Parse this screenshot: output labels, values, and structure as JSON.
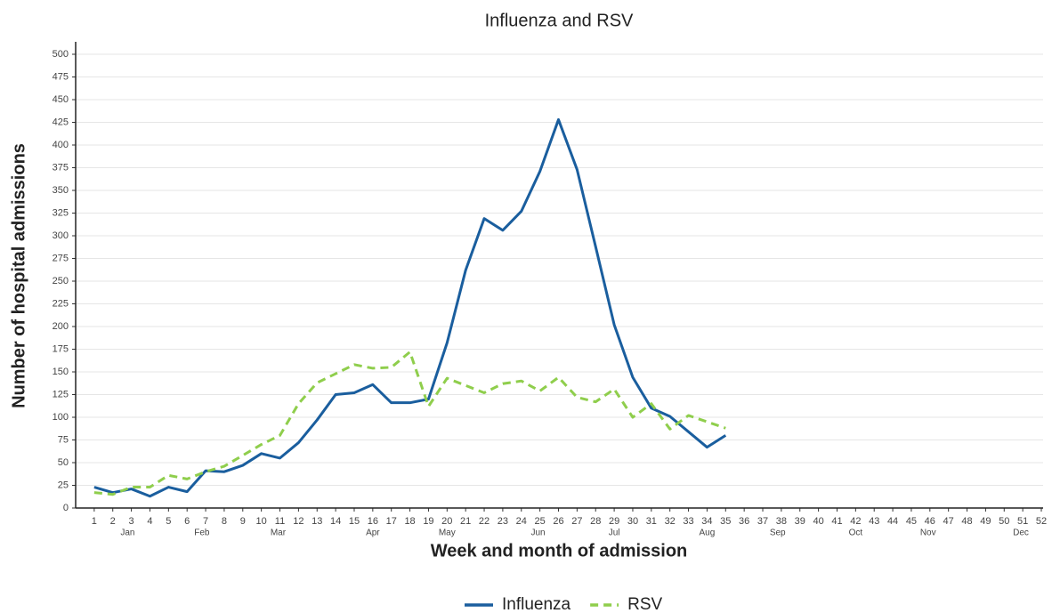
{
  "chart_data": {
    "type": "line",
    "title": "Influenza and RSV",
    "x_label": "Week and month of admission",
    "y_label": "Number of hospital admissions",
    "x": [
      1,
      2,
      3,
      4,
      5,
      6,
      7,
      8,
      9,
      10,
      11,
      12,
      13,
      14,
      15,
      16,
      17,
      18,
      19,
      20,
      21,
      22,
      23,
      24,
      25,
      26,
      27,
      28,
      29,
      30,
      31,
      32,
      33,
      34,
      35
    ],
    "series": [
      {
        "name": "Influenza",
        "color": "#1a5e9e",
        "style": "solid",
        "values": [
          23,
          17,
          21,
          13,
          23,
          18,
          41,
          40,
          47,
          60,
          55,
          72,
          97,
          125,
          127,
          136,
          116,
          116,
          120,
          182,
          262,
          319,
          306,
          327,
          371,
          428,
          373,
          288,
          202,
          144,
          110,
          101,
          84,
          67,
          80
        ]
      },
      {
        "name": "RSV",
        "color": "#8fce4c",
        "style": "dashed",
        "values": [
          17,
          15,
          23,
          23,
          36,
          32,
          40,
          46,
          58,
          70,
          80,
          115,
          138,
          148,
          158,
          154,
          155,
          172,
          112,
          143,
          135,
          127,
          137,
          140,
          129,
          144,
          122,
          117,
          131,
          100,
          115,
          87,
          102,
          95,
          88
        ]
      }
    ],
    "xlim": [
      0,
      52
    ],
    "xticks": [
      1,
      2,
      3,
      4,
      5,
      6,
      7,
      8,
      9,
      10,
      11,
      12,
      13,
      14,
      15,
      16,
      17,
      18,
      19,
      20,
      21,
      22,
      23,
      24,
      25,
      26,
      27,
      28,
      29,
      30,
      31,
      32,
      33,
      34,
      35,
      36,
      37,
      38,
      39,
      40,
      41,
      42,
      43,
      44,
      45,
      46,
      47,
      48,
      49,
      50,
      51,
      52
    ],
    "month_labels": [
      {
        "value": 2.8,
        "label": "Jan"
      },
      {
        "value": 6.8,
        "label": "Feb"
      },
      {
        "value": 10.9,
        "label": "Mar"
      },
      {
        "value": 16.0,
        "label": "Apr"
      },
      {
        "value": 20.0,
        "label": "May"
      },
      {
        "value": 24.9,
        "label": "Jun"
      },
      {
        "value": 29.0,
        "label": "Jul"
      },
      {
        "value": 34.0,
        "label": "Aug"
      },
      {
        "value": 37.8,
        "label": "Sep"
      },
      {
        "value": 42.0,
        "label": "Oct"
      },
      {
        "value": 45.9,
        "label": "Nov"
      },
      {
        "value": 50.9,
        "label": "Dec"
      }
    ],
    "ylim": [
      0,
      500
    ],
    "yticks": [
      0,
      25,
      50,
      75,
      100,
      125,
      150,
      175,
      200,
      225,
      250,
      275,
      300,
      325,
      350,
      375,
      400,
      425,
      450,
      475,
      500
    ],
    "grid": true,
    "legend": "bottom"
  }
}
